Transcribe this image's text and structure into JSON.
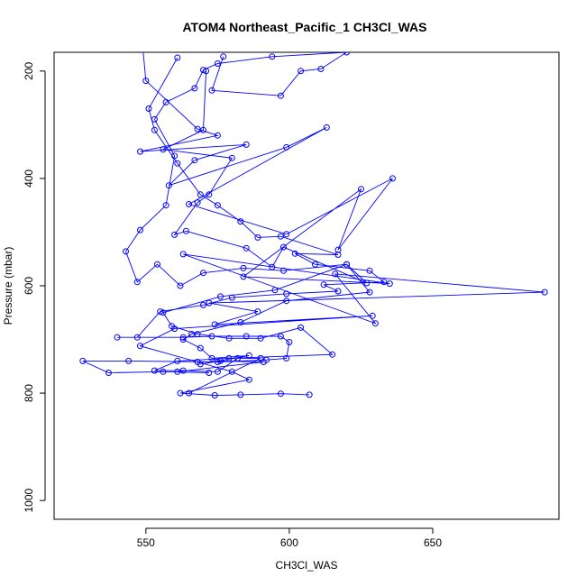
{
  "chart_data": {
    "type": "scatter",
    "title": "ATOM4 Northeast_Pacific_1 CH3Cl_WAS",
    "xlabel": "CH3Cl_WAS",
    "ylabel": "Pressure (mbar)",
    "xlim": [
      518,
      694
    ],
    "ylim": [
      1035,
      165
    ],
    "y_reversed": true,
    "x_ticks": [
      550,
      600,
      650
    ],
    "y_ticks": [
      200,
      400,
      600,
      800,
      1000
    ],
    "grid": false,
    "line_color": "#0000ff",
    "marker": "open-circle",
    "series": [
      {
        "values": [
          [
            549,
            160
          ],
          [
            550,
            218
          ],
          [
            568,
            308
          ],
          [
            575,
            320
          ],
          [
            548,
            350
          ],
          [
            585,
            337
          ],
          [
            567,
            366
          ],
          [
            558,
            413
          ],
          [
            599,
            342
          ],
          [
            613,
            305
          ],
          [
            565,
            448
          ],
          [
            599,
            504
          ],
          [
            636,
            400
          ],
          [
            617,
            533
          ],
          [
            625,
            420
          ],
          [
            584,
            583
          ],
          [
            635,
            596
          ],
          [
            563,
            541
          ],
          [
            630,
            670
          ],
          [
            616,
            578
          ],
          [
            689,
            612
          ],
          [
            572,
            632
          ],
          [
            589,
            648
          ],
          [
            574,
            672
          ],
          [
            629,
            656
          ],
          [
            560,
            680
          ],
          [
            548,
            712
          ],
          [
            568,
            742
          ],
          [
            580,
            760
          ],
          [
            586,
            775
          ],
          [
            562,
            800
          ],
          [
            574,
            804
          ],
          [
            583,
            803
          ],
          [
            597,
            801
          ],
          [
            607,
            803
          ]
        ]
      },
      {
        "values": [
          [
            571,
            200
          ],
          [
            570,
            310
          ],
          [
            556,
            346
          ],
          [
            580,
            362
          ],
          [
            572,
            430
          ],
          [
            568,
            445
          ],
          [
            560,
            505
          ],
          [
            564,
            498
          ],
          [
            585,
            530
          ],
          [
            594,
            565
          ],
          [
            598,
            528
          ],
          [
            627,
            595
          ],
          [
            620,
            560
          ],
          [
            595,
            608
          ],
          [
            576,
            620
          ],
          [
            556,
            650
          ],
          [
            559,
            675
          ],
          [
            568,
            690
          ],
          [
            579,
            698
          ],
          [
            590,
            698
          ],
          [
            604,
            678
          ],
          [
            615,
            728
          ],
          [
            579,
            735
          ],
          [
            561,
            740
          ],
          [
            553,
            758
          ],
          [
            563,
            758
          ],
          [
            575,
            760
          ],
          [
            582,
            735
          ],
          [
            590,
            735
          ],
          [
            565,
            800
          ]
        ]
      },
      {
        "values": [
          [
            561,
            175
          ],
          [
            551,
            270
          ],
          [
            553,
            310
          ],
          [
            561,
            372
          ],
          [
            569,
            430
          ],
          [
            575,
            450
          ],
          [
            583,
            480
          ],
          [
            589,
            510
          ],
          [
            597,
            508
          ],
          [
            617,
            542
          ],
          [
            602,
            540
          ],
          [
            609,
            560
          ],
          [
            628,
            572
          ],
          [
            633,
            593
          ],
          [
            612,
            598
          ],
          [
            617,
            610
          ],
          [
            599,
            615
          ],
          [
            580,
            622
          ],
          [
            570,
            636
          ],
          [
            555,
            648
          ],
          [
            547,
            696
          ],
          [
            540,
            696
          ],
          [
            563,
            696
          ],
          [
            573,
            694
          ],
          [
            585,
            694
          ],
          [
            597,
            694
          ],
          [
            600,
            705
          ],
          [
            599,
            735
          ],
          [
            592,
            738
          ],
          [
            575,
            742
          ],
          [
            544,
            740
          ],
          [
            528,
            740
          ],
          [
            537,
            762
          ],
          [
            556,
            760
          ],
          [
            572,
            762
          ]
        ]
      },
      {
        "values": [
          [
            577,
            173
          ],
          [
            573,
            236
          ],
          [
            597,
            246
          ],
          [
            604,
            200
          ],
          [
            611,
            196
          ],
          [
            620,
            165
          ],
          [
            594,
            173
          ],
          [
            575,
            186
          ],
          [
            570,
            198
          ],
          [
            567,
            232
          ],
          [
            557,
            258
          ],
          [
            553,
            290
          ],
          [
            560,
            358
          ],
          [
            557,
            450
          ],
          [
            548,
            496
          ],
          [
            543,
            536
          ],
          [
            547,
            593
          ],
          [
            554,
            560
          ],
          [
            562,
            600
          ],
          [
            570,
            576
          ],
          [
            584,
            567
          ],
          [
            598,
            572
          ],
          [
            620,
            560
          ],
          [
            628,
            612
          ],
          [
            599,
            628
          ],
          [
            583,
            668
          ],
          [
            566,
            690
          ],
          [
            563,
            700
          ],
          [
            569,
            716
          ],
          [
            573,
            735
          ],
          [
            586,
            730
          ],
          [
            569,
            746
          ],
          [
            576,
            740
          ],
          [
            591,
            742
          ],
          [
            561,
            760
          ]
        ]
      }
    ]
  }
}
